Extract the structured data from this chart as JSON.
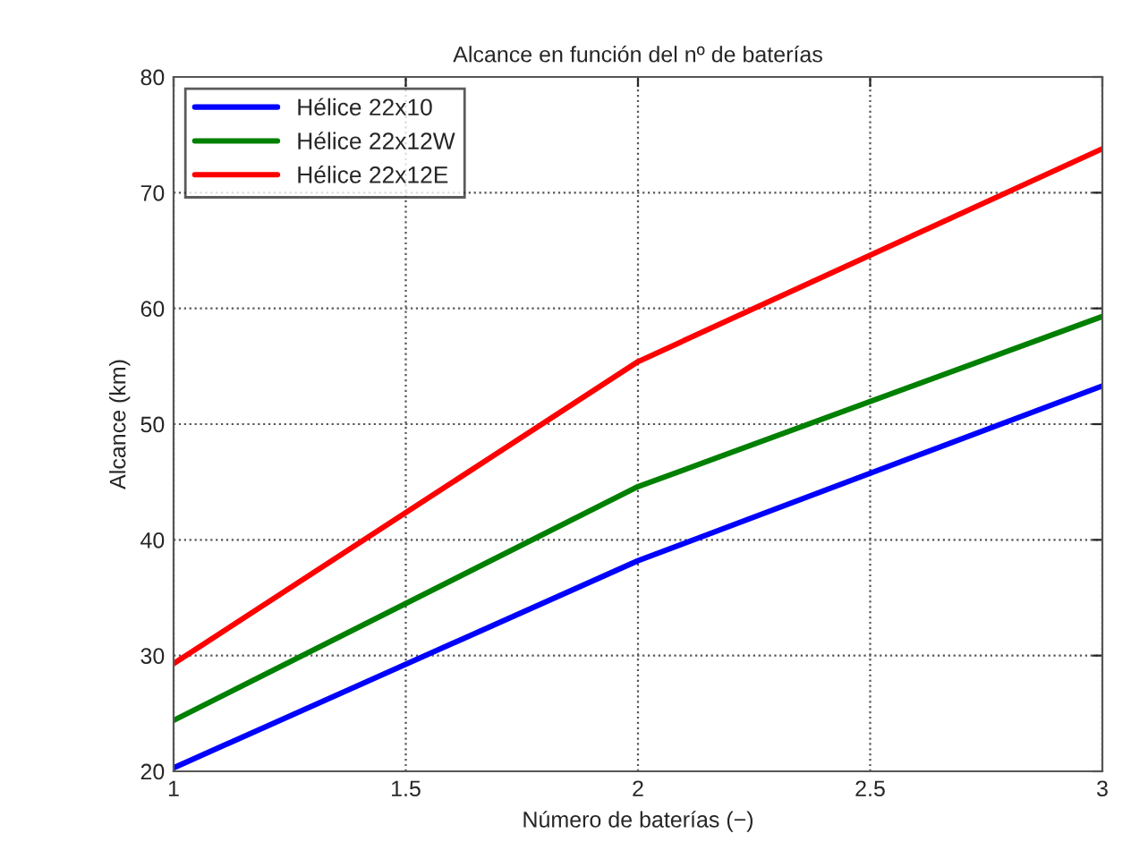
{
  "chart_data": {
    "type": "line",
    "title": "Alcance en función del nº de baterías",
    "xlabel": "Número de baterías (−)",
    "ylabel": "Alcance (km)",
    "x": [
      1,
      2,
      3
    ],
    "series": [
      {
        "name": "Hélice 22x10",
        "color": "#0000ff",
        "values": [
          20.3,
          38.2,
          53.3
        ]
      },
      {
        "name": "Hélice 22x12W",
        "color": "#008000",
        "values": [
          24.4,
          44.6,
          59.3
        ]
      },
      {
        "name": "Hélice 22x12E",
        "color": "#ff0000",
        "values": [
          29.3,
          55.4,
          73.8
        ]
      }
    ],
    "xlim": [
      1,
      3
    ],
    "xticks": [
      1,
      1.5,
      2,
      2.5,
      3
    ],
    "ylim": [
      20,
      80
    ],
    "yticks": [
      20,
      30,
      40,
      50,
      60,
      70,
      80
    ],
    "grid": true,
    "legend": "top left",
    "line_style": "solid",
    "marker": "none"
  }
}
